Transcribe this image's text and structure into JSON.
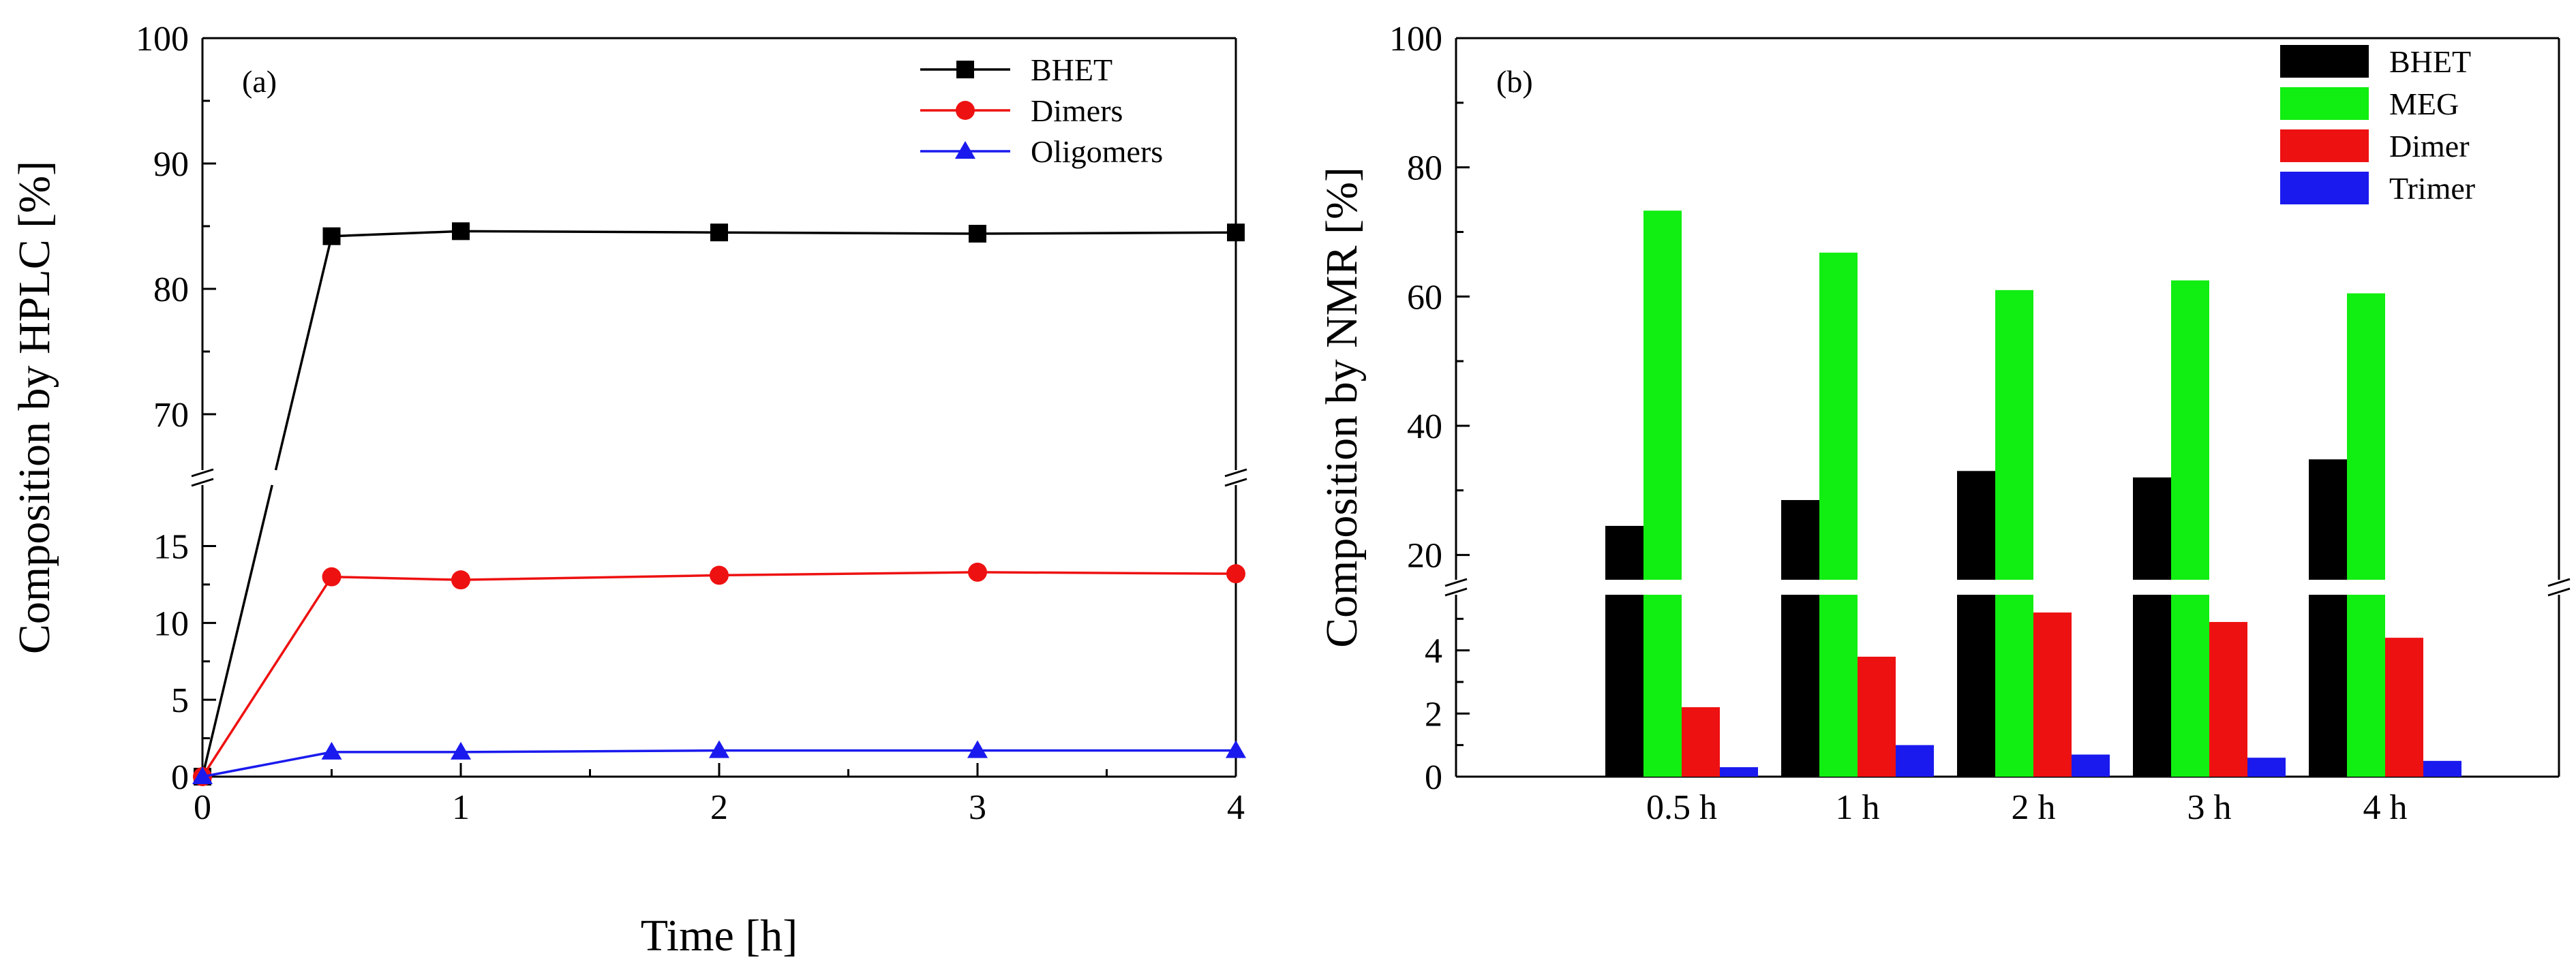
{
  "chart_data": [
    {
      "id": "a",
      "type": "line",
      "panel_label": "(a)",
      "title": "",
      "xlabel": "Time [h]",
      "ylabel": "Composition by HPLC [%]",
      "x": [
        0,
        0.5,
        1,
        2,
        3,
        4
      ],
      "xlim": [
        0,
        4
      ],
      "xticks": [
        "0",
        "1",
        "2",
        "3",
        "4"
      ],
      "xtick_values": [
        0,
        1,
        2,
        3,
        4
      ],
      "y_break": true,
      "ylim_lower": [
        0,
        19.5
      ],
      "ylim_upper": [
        65,
        100
      ],
      "yticks_lower": [
        "0",
        "5",
        "10",
        "15"
      ],
      "ytick_values_lower": [
        0,
        5,
        10,
        15
      ],
      "yticks_upper": [
        "70",
        "80",
        "90",
        "100"
      ],
      "ytick_values_upper": [
        70,
        80,
        90,
        100
      ],
      "legend_position": "top-right",
      "series": [
        {
          "name": "BHET",
          "color": "#000000",
          "marker": "square",
          "values": [
            0,
            84.2,
            84.6,
            84.5,
            84.4,
            84.5
          ]
        },
        {
          "name": "Dimers",
          "color": "#ee1111",
          "marker": "circle",
          "values": [
            0,
            13.0,
            12.8,
            13.1,
            13.3,
            13.2
          ]
        },
        {
          "name": "Oligomers",
          "color": "#1a1aee",
          "marker": "triangle",
          "values": [
            0,
            1.6,
            1.6,
            1.7,
            1.7,
            1.7
          ]
        }
      ]
    },
    {
      "id": "b",
      "type": "bar",
      "panel_label": "(b)",
      "title": "",
      "xlabel": "",
      "ylabel": "Composition by NMR [%]",
      "categories": [
        "0.5 h",
        "1 h",
        "2 h",
        "3 h",
        "4 h"
      ],
      "y_break": true,
      "ylim_lower": [
        0,
        6
      ],
      "ylim_upper": [
        15,
        100
      ],
      "yticks_lower": [
        "0",
        "2",
        "4"
      ],
      "ytick_values_lower": [
        0,
        2,
        4
      ],
      "yticks_upper": [
        "20",
        "40",
        "60",
        "80",
        "100"
      ],
      "ytick_values_upper": [
        20,
        40,
        60,
        80,
        100
      ],
      "legend_position": "top-right",
      "series": [
        {
          "name": "BHET",
          "color": "#000000",
          "values": [
            24.5,
            28.5,
            33.0,
            32.0,
            34.8
          ]
        },
        {
          "name": "MEG",
          "color": "#11ee11",
          "values": [
            73.3,
            66.8,
            61.0,
            62.5,
            60.5
          ]
        },
        {
          "name": "Dimer",
          "color": "#ee1111",
          "values": [
            2.2,
            3.8,
            5.2,
            4.9,
            4.4
          ]
        },
        {
          "name": "Trimer",
          "color": "#1a1aee",
          "values": [
            0.3,
            1.0,
            0.7,
            0.6,
            0.5
          ]
        }
      ]
    }
  ]
}
